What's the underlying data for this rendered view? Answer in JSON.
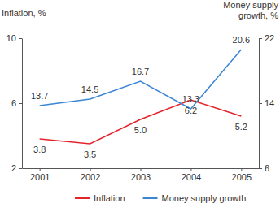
{
  "chart_data": {
    "type": "line",
    "categories": [
      "2001",
      "2002",
      "2003",
      "2004",
      "2005"
    ],
    "series": [
      {
        "name": "Inflation",
        "color": "#e3242b",
        "values": [
          3.8,
          3.5,
          5.0,
          6.2,
          5.2
        ],
        "value_labels": [
          "3.8",
          "3.5",
          "5.0",
          "6.2",
          "5.2"
        ]
      },
      {
        "name": "Money supply growth",
        "color": "#3a86d4",
        "axis": "y2",
        "values": [
          13.7,
          14.5,
          16.7,
          13.3,
          20.6
        ],
        "value_labels": [
          "13.7",
          "14.5",
          "16.7",
          "13.3",
          "20.6"
        ]
      }
    ],
    "y_label": "Inflation, %",
    "y2_label": "Money supply growth, %",
    "ylim": [
      2,
      10
    ],
    "yticks": [
      2,
      6,
      10
    ],
    "y2lim": [
      6,
      22
    ],
    "y2ticks": [
      6,
      14,
      22
    ],
    "data_labels": true,
    "legend": "bottom"
  }
}
